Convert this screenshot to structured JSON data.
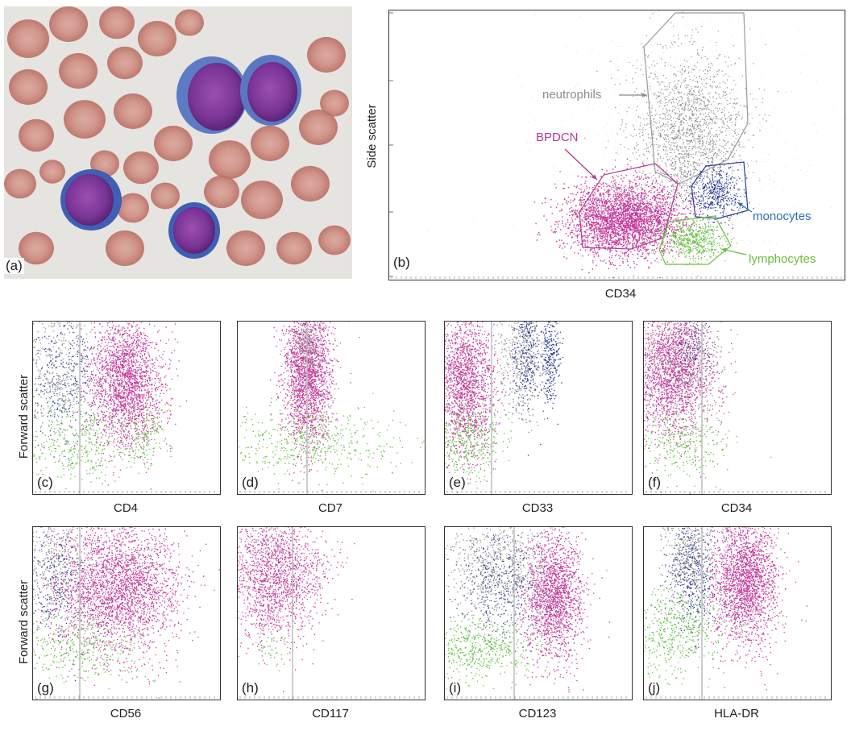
{
  "micrograph": {
    "panel_label": "(a)"
  },
  "scatter_b": {
    "panel_label": "(b)",
    "xlabel": "CD34",
    "ylabel": "Side scatter",
    "annotations": {
      "neutrophils": "neutrophils",
      "bpdcn": "BPDCN",
      "monocytes": "monocytes",
      "lymphocytes": "lymphocytes"
    }
  },
  "small_plots": [
    {
      "panel_label": "(c)",
      "xlabel": "CD4"
    },
    {
      "panel_label": "(d)",
      "xlabel": "CD7"
    },
    {
      "panel_label": "(e)",
      "xlabel": "CD33"
    },
    {
      "panel_label": "(f)",
      "xlabel": "CD34"
    },
    {
      "panel_label": "(g)",
      "xlabel": "CD56"
    },
    {
      "panel_label": "(h)",
      "xlabel": "CD117"
    },
    {
      "panel_label": "(i)",
      "xlabel": "CD123"
    },
    {
      "panel_label": "(j)",
      "xlabel": "HLA-DR"
    }
  ],
  "row_ylabels": {
    "row1": "Forward scatter",
    "row2": "Forward scatter"
  },
  "colors": {
    "bpdcn": "#c4399a",
    "neutrophils": "#8c8c8c",
    "monocytes": "#2b3d96",
    "lymphocytes": "#5fbf3a",
    "annotation_neutrophils": "#8c8c8c",
    "annotation_bpdcn": "#b43a92",
    "annotation_monocytes": "#2f6fb5",
    "annotation_lymphocytes": "#6cbd3e"
  }
}
